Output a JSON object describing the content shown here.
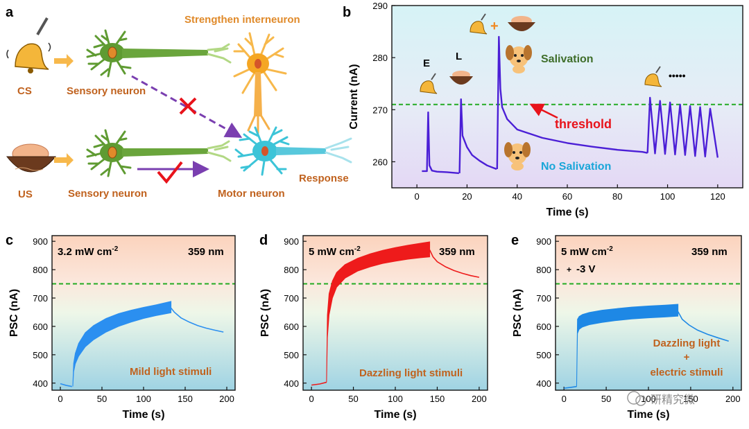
{
  "panel_labels": {
    "a": "a",
    "b": "b",
    "c": "c",
    "d": "d",
    "e": "e"
  },
  "colors": {
    "orange": "#d2691e",
    "neuron_green": "#5f9b32",
    "interneuron": "#f5a623",
    "motor": "#3cc4d8",
    "threshold": "#22aa22",
    "trace_b": "#4b1fd6",
    "trace_c": "#2b8ff0",
    "trace_d": "#ee1b1b",
    "trace_e": "#1e88e5",
    "red_text": "#e8131b",
    "dark_green": "#3f6e2a",
    "cyan_text": "#1aa6d8",
    "brown_text": "#c0621e"
  },
  "diagram": {
    "cs_label": "CS",
    "us_label": "US",
    "sensory_top": "Sensory neuron",
    "sensory_bottom": "Sensory neuron",
    "interneuron_label": "Strengthen interneuron",
    "motor_label": "Motor neuron",
    "response_label": "Response",
    "bell_icon": "bell-icon",
    "bowl_icon": "food-bowl-icon",
    "cross_icon": "cross-icon",
    "check_icon": "check-icon"
  },
  "panel_b_labels": {
    "E": "E",
    "L": "L",
    "plus": "+",
    "dots": "•••••",
    "salivation": "Salivation",
    "no_salivation": "No Salivation",
    "threshold": "threshold",
    "dog_icon": "dog-icon"
  },
  "chart_data": [
    {
      "id": "b",
      "type": "line",
      "xlabel": "Time (s)",
      "ylabel": "Current (nA)",
      "xlim": [
        -10,
        130
      ],
      "ylim": [
        255,
        290
      ],
      "xticks": [
        0,
        20,
        40,
        60,
        80,
        100,
        120
      ],
      "yticks": [
        260,
        270,
        280,
        290
      ],
      "threshold": 271,
      "grid": false,
      "series": [
        {
          "x": [
            2,
            4,
            4.5,
            5,
            6,
            8,
            12,
            16.8
          ],
          "y": [
            258.2,
            258.2,
            269.5,
            259.3,
            258.3,
            258.1,
            258.0,
            257.8
          ]
        },
        {
          "x": [
            17,
            17.6,
            18.2,
            20,
            22,
            25,
            28,
            31.8
          ],
          "y": [
            257.8,
            272,
            265,
            262.8,
            261.3,
            260.2,
            259.3,
            258.6
          ]
        },
        {
          "x": [
            32,
            32.7,
            33.3,
            34,
            36,
            40,
            50,
            60,
            70,
            80,
            90,
            92
          ],
          "y": [
            258.6,
            284,
            274,
            270.5,
            268.2,
            266.2,
            264.6,
            263.6,
            262.9,
            262.3,
            261.9,
            261.7
          ]
        },
        {
          "x": [
            92,
            93,
            95,
            97,
            99,
            101,
            103,
            105,
            107,
            109,
            111,
            113,
            115,
            117,
            120
          ],
          "y": [
            261.7,
            272.3,
            261.6,
            271.7,
            261.5,
            271.4,
            261.4,
            271.0,
            261.3,
            270.7,
            261.1,
            270.5,
            261.0,
            270.2,
            260.8
          ]
        }
      ]
    },
    {
      "id": "c",
      "type": "area",
      "xlabel": "Time (s)",
      "ylabel": "PSC (nA)",
      "xlim": [
        -10,
        210
      ],
      "ylim": [
        375,
        920
      ],
      "xticks": [
        0,
        50,
        100,
        150,
        200
      ],
      "yticks": [
        400,
        500,
        600,
        700,
        800,
        900
      ],
      "threshold": 750,
      "intensity": "3.2 mW cm",
      "intensity_sup": "-2",
      "wavelength": "359 nm",
      "caption": "Mild light stimuli",
      "base": {
        "x": [
          0,
          7,
          14
        ],
        "y": [
          398,
          392,
          388
        ]
      },
      "band": {
        "x": [
          15,
          16,
          18,
          22,
          30,
          40,
          55,
          70,
          85,
          100,
          115,
          133
        ],
        "low": [
          388,
          440,
          468,
          495,
          528,
          553,
          580,
          600,
          615,
          628,
          638,
          648
        ],
        "high": [
          395,
          470,
          505,
          540,
          578,
          603,
          628,
          645,
          657,
          667,
          676,
          688
        ]
      },
      "decay": {
        "x": [
          133,
          137,
          145,
          155,
          165,
          175,
          185,
          196
        ],
        "y": [
          665,
          650,
          630,
          615,
          603,
          594,
          587,
          580
        ]
      }
    },
    {
      "id": "d",
      "type": "area",
      "xlabel": "Time (s)",
      "ylabel": "PSC (nA)",
      "xlim": [
        -10,
        210
      ],
      "ylim": [
        375,
        920
      ],
      "xticks": [
        0,
        50,
        100,
        150,
        200
      ],
      "yticks": [
        400,
        500,
        600,
        700,
        800,
        900
      ],
      "threshold": 750,
      "intensity": "5 mW cm",
      "intensity_sup": "-2",
      "wavelength": "359 nm",
      "caption": "Dazzling light stimuli",
      "base": {
        "x": [
          0,
          10,
          18
        ],
        "y": [
          393,
          397,
          403
        ]
      },
      "band": {
        "x": [
          18,
          19,
          21,
          25,
          30,
          40,
          55,
          70,
          85,
          100,
          115,
          130,
          141
        ],
        "low": [
          403,
          560,
          640,
          700,
          738,
          770,
          795,
          810,
          822,
          830,
          837,
          842,
          845
        ],
        "high": [
          410,
          640,
          715,
          760,
          790,
          818,
          840,
          856,
          868,
          878,
          886,
          893,
          898
        ]
      },
      "decay": {
        "x": [
          141,
          145,
          150,
          160,
          170,
          180,
          190,
          200
        ],
        "y": [
          870,
          845,
          828,
          810,
          797,
          787,
          779,
          773
        ]
      }
    },
    {
      "id": "e",
      "type": "area",
      "xlabel": "Time (s)",
      "ylabel": "PSC (nA)",
      "xlim": [
        -10,
        210
      ],
      "ylim": [
        375,
        920
      ],
      "xticks": [
        0,
        50,
        100,
        150,
        200
      ],
      "yticks": [
        400,
        500,
        600,
        700,
        800,
        900
      ],
      "threshold": 750,
      "intensity": "5 mW cm",
      "intensity_sup": "-2",
      "wavelength": "359 nm",
      "voltage": "-3 V",
      "voltage_mark": "+",
      "caption_line1": "Dazzling light",
      "caption_line2": "+",
      "caption_line3": "electric stimuli",
      "base": {
        "x": [
          0,
          8,
          15
        ],
        "y": [
          382,
          385,
          388
        ]
      },
      "band": {
        "x": [
          15,
          16,
          18,
          22,
          30,
          45,
          60,
          80,
          100,
          120,
          135
        ],
        "low": [
          388,
          575,
          590,
          598,
          606,
          614,
          620,
          626,
          630,
          633,
          636
        ],
        "high": [
          395,
          625,
          635,
          642,
          649,
          657,
          662,
          668,
          672,
          675,
          678
        ]
      },
      "decay": {
        "x": [
          135,
          140,
          148,
          158,
          170,
          182,
          195
        ],
        "y": [
          652,
          625,
          605,
          587,
          572,
          560,
          548
        ]
      }
    }
  ],
  "watermark": "研精究微"
}
